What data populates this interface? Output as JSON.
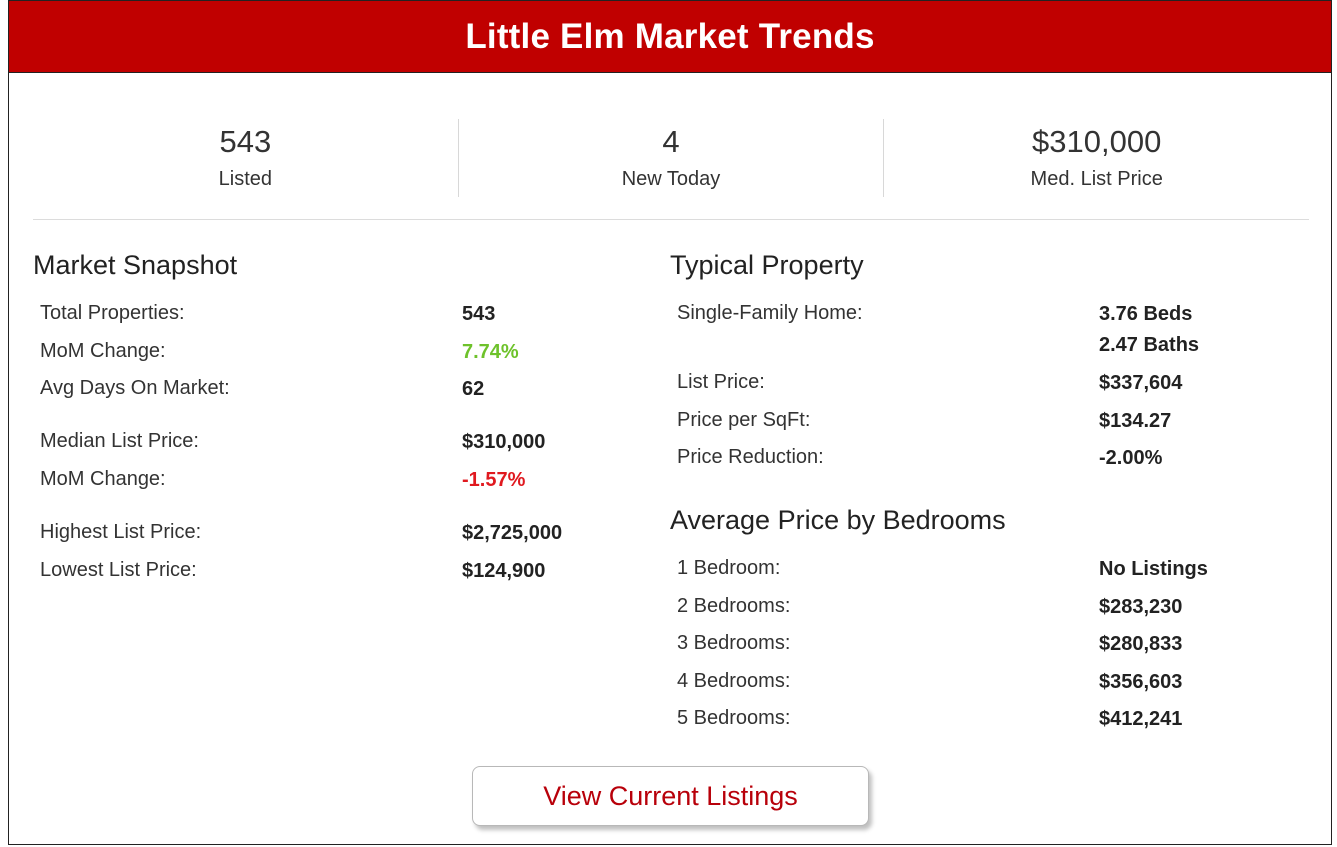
{
  "header": {
    "title": "Little Elm Market Trends",
    "bg_color": "#c00000"
  },
  "stats": [
    {
      "value": "543",
      "label": "Listed"
    },
    {
      "value": "4",
      "label": "New Today"
    },
    {
      "value": "$310,000",
      "label": "Med. List Price"
    }
  ],
  "snapshot": {
    "title": "Market Snapshot",
    "rows": [
      {
        "label": "Total Properties:",
        "value": "543"
      },
      {
        "label": "MoM Change:",
        "value": "7.74%",
        "status": "positive"
      },
      {
        "label": "Avg Days On Market:",
        "value": "62"
      },
      {
        "label": "Median List Price:",
        "value": "$310,000"
      },
      {
        "label": "MoM Change:",
        "value": "-1.57%",
        "status": "negative"
      },
      {
        "label": "Highest List Price:",
        "value": "$2,725,000"
      },
      {
        "label": "Lowest List Price:",
        "value": "$124,900"
      }
    ]
  },
  "typical": {
    "title": "Typical Property",
    "rows": [
      {
        "label": "Single-Family Home:",
        "value": "3.76 Beds",
        "value2": "2.47 Baths"
      },
      {
        "label": "List Price:",
        "value": "$337,604"
      },
      {
        "label": "Price per SqFt:",
        "value": "$134.27"
      },
      {
        "label": "Price Reduction:",
        "value": "-2.00%"
      }
    ]
  },
  "bedrooms": {
    "title": "Average Price by Bedrooms",
    "rows": [
      {
        "label": "1 Bedroom:",
        "value": "No Listings"
      },
      {
        "label": "2 Bedrooms:",
        "value": "$283,230"
      },
      {
        "label": "3 Bedrooms:",
        "value": "$280,833"
      },
      {
        "label": "4 Bedrooms:",
        "value": "$356,603"
      },
      {
        "label": "5 Bedrooms:",
        "value": "$412,241"
      }
    ]
  },
  "cta": {
    "label": "View Current Listings",
    "color": "#b8000a"
  },
  "colors": {
    "positive": "#6ec22b",
    "negative": "#e0191f"
  }
}
